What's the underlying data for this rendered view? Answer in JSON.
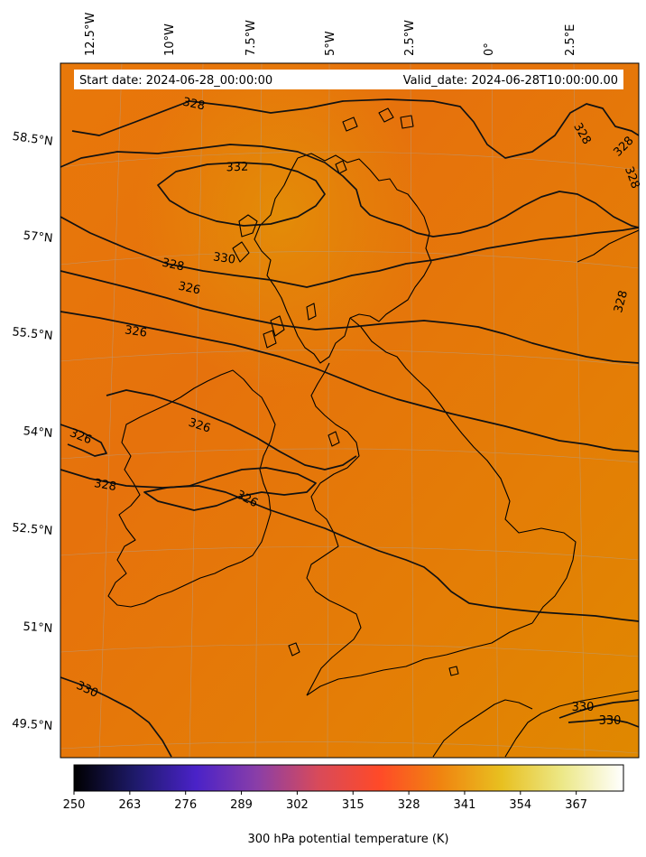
{
  "header": {
    "start_date": "Start date: 2024-06-28_00:00:00",
    "valid_date": "Valid_date: 2024-06-28T10:00:00.00"
  },
  "map": {
    "field_color_low": "#e8720a",
    "field_color_high": "#e08a00",
    "coastline_color": "#000000",
    "contour_color": "#111111",
    "gridline_color": "#9a9a9a"
  },
  "lon_labels": [
    "12.5°W",
    "10°W",
    "7.5°W",
    "5°W",
    "2.5°W",
    "0°",
    "2.5°E"
  ],
  "lat_labels": [
    "58.5°N",
    "57°N",
    "55.5°N",
    "54°N",
    "52.5°N",
    "51°N",
    "49.5°N"
  ],
  "contour_labels": [
    "328",
    "332",
    "330",
    "328",
    "326",
    "326",
    "326",
    "326",
    "328",
    "326",
    "328",
    "328",
    "328",
    "328",
    "330",
    "330",
    "330"
  ],
  "colorbar": {
    "label": "300 hPa potential temperature (K)",
    "ticks": [
      "250",
      "263",
      "276",
      "289",
      "302",
      "315",
      "328",
      "341",
      "354",
      "367"
    ],
    "min": 250,
    "max": 378,
    "stops": [
      "#000000",
      "#1e1a6a",
      "#4a22c8",
      "#8a3ea8",
      "#d84a5a",
      "#ff4a28",
      "#f08410",
      "#e8c020",
      "#ece888",
      "#ffffff"
    ]
  }
}
